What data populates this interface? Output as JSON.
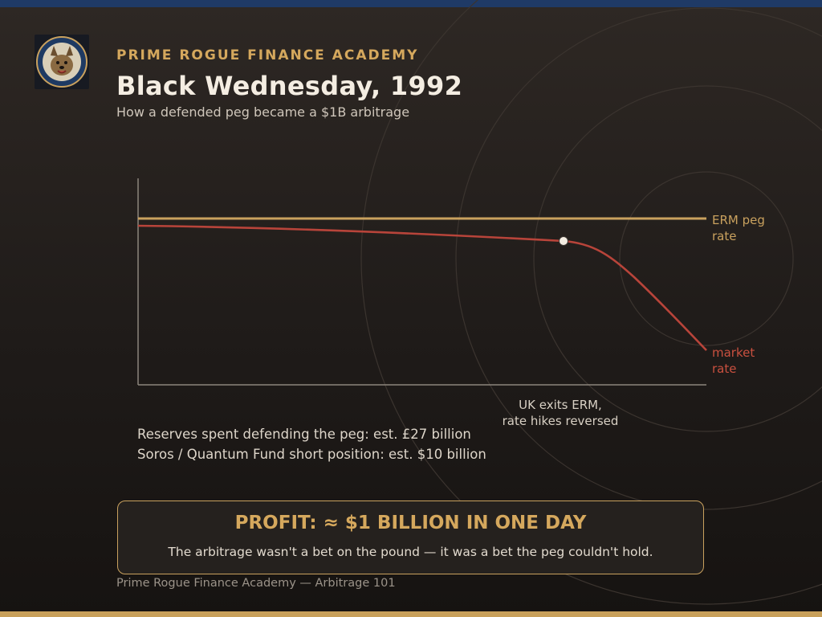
{
  "header": {
    "kicker": "PRIME ROGUE FINANCE ACADEMY",
    "title": "Black Wednesday, 1992",
    "subtitle": "How a defended peg became a $1B arbitrage",
    "logo_icon": "dog-mascot-badge-icon"
  },
  "chart_data": {
    "type": "line",
    "series": [
      {
        "name": "ERM peg rate",
        "label_lines": [
          "ERM peg",
          "rate"
        ],
        "color": "#c9a15e",
        "shape": "flat"
      },
      {
        "name": "market rate",
        "label_lines": [
          "market",
          "rate"
        ],
        "color": "#b8443a",
        "shape": "gradual decline, then sharp fall after marker"
      }
    ],
    "annotation": {
      "lines": [
        "UK exits ERM,",
        "rate hikes reversed"
      ]
    },
    "axes": {
      "ticks": "none",
      "grid": false
    }
  },
  "facts": [
    "Reserves spent defending the peg: est. £27 billion",
    "Soros / Quantum Fund short position: est. $10 billion"
  ],
  "callout": {
    "title": "PROFIT: ≈ $1 BILLION IN ONE DAY",
    "text": "The arbitrage wasn't a bet on the pound — it was a bet the peg couldn't hold."
  },
  "footer": "Prime Rogue Finance Academy — Arbitrage 101",
  "colors": {
    "accent": "#d5a85d",
    "peg_line": "#c9a15e",
    "market_line": "#b8443a",
    "top_bar": "#1f3a66"
  }
}
